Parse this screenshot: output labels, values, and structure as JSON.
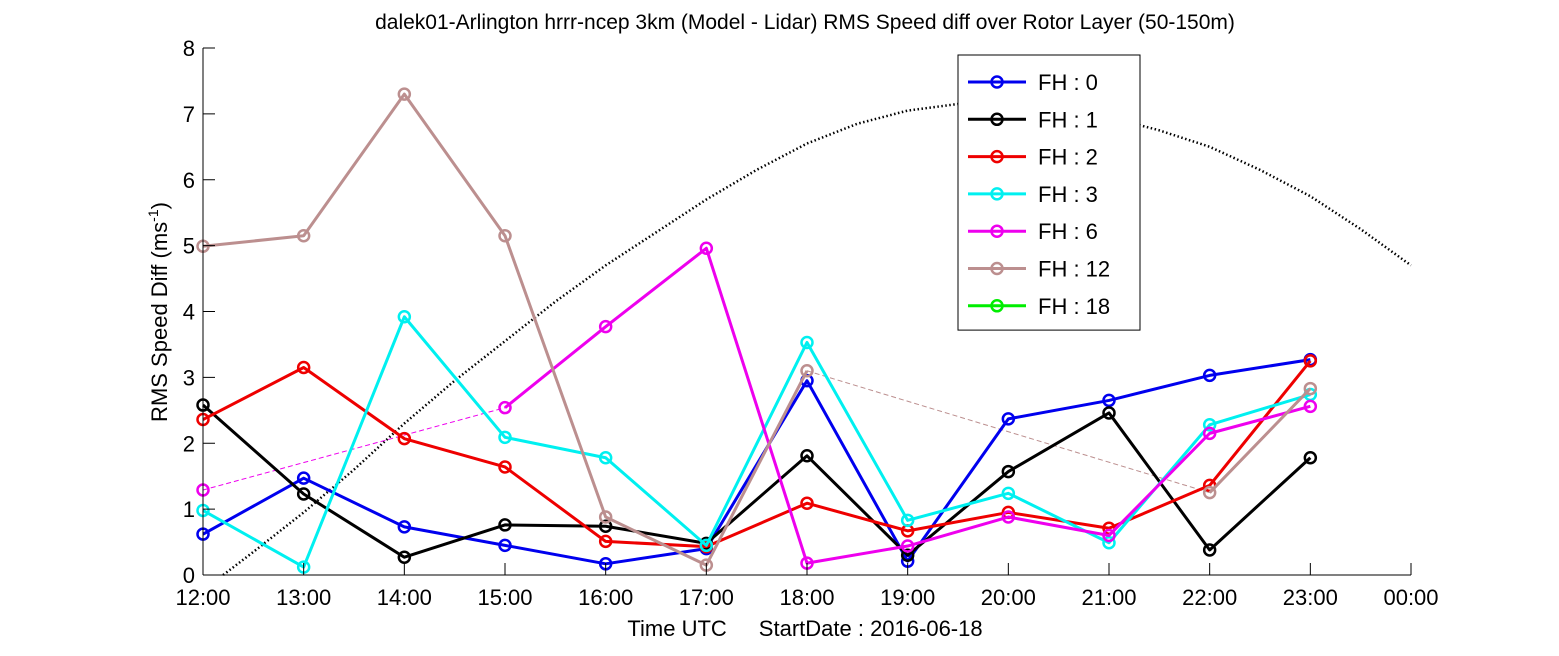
{
  "chart_data": {
    "type": "line",
    "title": "dalek01-Arlington hrrr-ncep 3km (Model - Lidar) RMS Speed diff over Rotor Layer (50-150m)",
    "xlabel_main": "Time UTC",
    "xlabel_date": "StartDate : 2016-06-18",
    "ylabel_main": "RMS Speed Diff (ms",
    "ylabel_sup": "-1",
    "ylabel_close": ")",
    "xlim": [
      12,
      24
    ],
    "ylim": [
      0,
      8
    ],
    "x_ticks": [
      {
        "value": 12,
        "label": "12:00"
      },
      {
        "value": 13,
        "label": "13:00"
      },
      {
        "value": 14,
        "label": "14:00"
      },
      {
        "value": 15,
        "label": "15:00"
      },
      {
        "value": 16,
        "label": "16:00"
      },
      {
        "value": 17,
        "label": "17:00"
      },
      {
        "value": 18,
        "label": "18:00"
      },
      {
        "value": 19,
        "label": "19:00"
      },
      {
        "value": 20,
        "label": "20:00"
      },
      {
        "value": 21,
        "label": "21:00"
      },
      {
        "value": 22,
        "label": "22:00"
      },
      {
        "value": 23,
        "label": "23:00"
      },
      {
        "value": 24,
        "label": "00:00"
      }
    ],
    "y_ticks": [
      {
        "value": 0,
        "label": "0"
      },
      {
        "value": 1,
        "label": "1"
      },
      {
        "value": 2,
        "label": "2"
      },
      {
        "value": 3,
        "label": "3"
      },
      {
        "value": 4,
        "label": "4"
      },
      {
        "value": 5,
        "label": "5"
      },
      {
        "value": 6,
        "label": "6"
      },
      {
        "value": 7,
        "label": "7"
      },
      {
        "value": 8,
        "label": "8"
      }
    ],
    "grid": false,
    "legend_position": "top-right",
    "x": [
      12,
      13,
      14,
      15,
      16,
      17,
      18,
      19,
      20,
      21,
      22,
      23
    ],
    "series": [
      {
        "name": "FH : 0",
        "color": "#0000ee",
        "values": [
          0.62,
          1.47,
          0.73,
          0.45,
          0.17,
          0.4,
          2.95,
          0.21,
          2.37,
          2.65,
          3.03,
          3.27
        ]
      },
      {
        "name": "FH : 1",
        "color": "#000000",
        "values": [
          2.58,
          1.23,
          0.27,
          0.76,
          0.74,
          0.48,
          1.81,
          0.3,
          1.57,
          2.46,
          0.38,
          1.78
        ]
      },
      {
        "name": "FH : 2",
        "color": "#ee0000",
        "values": [
          2.36,
          3.15,
          2.07,
          1.64,
          0.51,
          0.43,
          1.09,
          0.67,
          0.95,
          0.71,
          1.36,
          3.25
        ]
      },
      {
        "name": "FH : 3",
        "color": "#00f0f0",
        "values": [
          0.98,
          0.12,
          3.92,
          2.09,
          1.78,
          0.45,
          3.53,
          0.83,
          1.24,
          0.49,
          2.28,
          2.74
        ]
      },
      {
        "name": "FH : 6",
        "color": "#ee00ee",
        "values": [
          1.29,
          null,
          null,
          2.54,
          3.77,
          4.96,
          0.18,
          0.44,
          0.88,
          0.6,
          2.15,
          2.56
        ]
      },
      {
        "name": "FH : 12",
        "color": "#bc8f8f",
        "values": [
          4.99,
          5.15,
          7.3,
          5.15,
          0.88,
          0.15,
          3.1,
          null,
          null,
          null,
          1.25,
          2.83
        ]
      },
      {
        "name": "FH : 18",
        "color": "#00ee00",
        "values": [
          null,
          null,
          null,
          null,
          null,
          null,
          null,
          null,
          null,
          null,
          null,
          null
        ]
      }
    ],
    "gap_connectors": [
      {
        "series": "FH : 6",
        "color": "#ee00ee",
        "from": [
          12,
          1.29
        ],
        "to": [
          15,
          2.54
        ]
      },
      {
        "series": "FH : 12",
        "color": "#bc8f8f",
        "from": [
          18,
          3.1
        ],
        "to": [
          22,
          1.25
        ]
      }
    ],
    "dotted_curve": {
      "color": "#000000",
      "x": [
        12.2,
        12.5,
        13,
        13.5,
        14,
        14.5,
        15,
        15.5,
        16,
        16.5,
        17,
        17.5,
        18,
        18.5,
        19,
        19.5,
        20,
        20.5,
        21,
        21.5,
        22,
        22.5,
        23,
        23.5,
        24
      ],
      "y": [
        0.0,
        0.35,
        0.95,
        1.6,
        2.3,
        2.95,
        3.55,
        4.15,
        4.7,
        5.2,
        5.7,
        6.15,
        6.55,
        6.85,
        7.05,
        7.15,
        7.15,
        7.1,
        6.95,
        6.75,
        6.5,
        6.15,
        5.75,
        5.25,
        4.7
      ]
    }
  }
}
